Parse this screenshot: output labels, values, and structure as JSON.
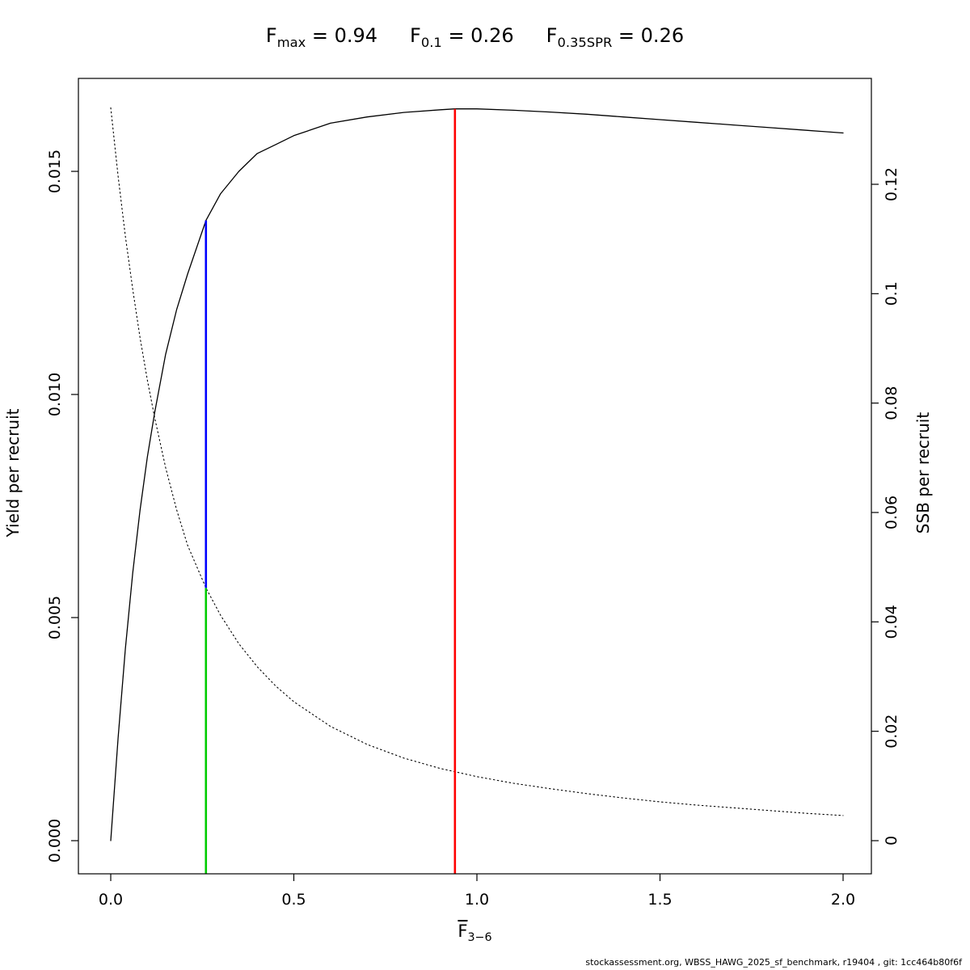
{
  "title": {
    "terms": [
      {
        "base": "F",
        "sub": "max",
        "eq": " = 0.94"
      },
      {
        "base": "F",
        "sub": "0.1",
        "eq": " = 0.26"
      },
      {
        "base": "F",
        "sub": "0.35SPR",
        "eq": " = 0.26"
      }
    ]
  },
  "axis_labels": {
    "y_left": "Yield per recruit",
    "y_right": "SSB per recruit",
    "x_base": "F",
    "x_sub": "3−6"
  },
  "footer": "stockassessment.org, WBSS_HAWG_2025_sf_benchmark, r19404 , git: 1cc464b80f6f",
  "chart_data": {
    "type": "line",
    "title": "Fmax = 0.94   F0.1 = 0.26   F0.35SPR = 0.26",
    "xlabel": "F̄3−6",
    "ylabel_left": "Yield per recruit",
    "ylabel_right": "SSB per recruit",
    "x_range": [
      0,
      2
    ],
    "grid": false,
    "legend": "none",
    "axes": {
      "x": {
        "tick_values": [
          0,
          0.5,
          1,
          1.5,
          2
        ],
        "tick_labels": [
          "0.0",
          "0.5",
          "1.0",
          "1.5",
          "2.0"
        ]
      },
      "y_left": {
        "tick_values": [
          0,
          0.005,
          0.01,
          0.015
        ],
        "tick_labels": [
          "0.000",
          "0.005",
          "0.010",
          "0.015"
        ]
      },
      "y_right": {
        "tick_values": [
          0,
          0.02,
          0.04,
          0.06,
          0.08,
          0.1,
          0.12
        ],
        "tick_labels": [
          "0",
          "0.02",
          "0.04",
          "0.06",
          "0.08",
          "0.1",
          "0.12"
        ]
      }
    },
    "series": [
      {
        "name": "yield-per-recruit",
        "axis": "left",
        "style": "solid",
        "color": "#000000",
        "x": [
          0,
          0.02,
          0.04,
          0.06,
          0.08,
          0.1,
          0.12,
          0.15,
          0.18,
          0.21,
          0.26,
          0.3,
          0.35,
          0.4,
          0.45,
          0.5,
          0.6,
          0.7,
          0.8,
          0.9,
          0.94,
          1.0,
          1.1,
          1.2,
          1.3,
          1.4,
          1.5,
          1.6,
          1.7,
          1.8,
          1.9,
          2.0
        ],
        "y": [
          0,
          0.0023,
          0.0043,
          0.006,
          0.0074,
          0.0086,
          0.0096,
          0.0109,
          0.0119,
          0.0127,
          0.0139,
          0.0145,
          0.015,
          0.0154,
          0.0156,
          0.0158,
          0.01608,
          0.01622,
          0.01632,
          0.01638,
          0.0164,
          0.0164,
          0.01637,
          0.01633,
          0.01628,
          0.01622,
          0.01616,
          0.0161,
          0.01604,
          0.01598,
          0.01592,
          0.01586
        ]
      },
      {
        "name": "ssb-per-recruit",
        "axis": "right",
        "style": "dotted",
        "color": "#000000",
        "x": [
          0,
          0.02,
          0.04,
          0.06,
          0.08,
          0.1,
          0.12,
          0.15,
          0.18,
          0.21,
          0.26,
          0.3,
          0.35,
          0.4,
          0.45,
          0.5,
          0.6,
          0.7,
          0.8,
          0.9,
          0.94,
          1.0,
          1.1,
          1.2,
          1.3,
          1.4,
          1.5,
          1.6,
          1.7,
          1.8,
          1.9,
          2.0
        ],
        "y": [
          0.134,
          0.1215,
          0.1105,
          0.1008,
          0.092,
          0.0842,
          0.0773,
          0.0682,
          0.0605,
          0.054,
          0.0462,
          0.0412,
          0.036,
          0.0318,
          0.0283,
          0.0254,
          0.0209,
          0.0176,
          0.0151,
          0.0132,
          0.0126,
          0.0117,
          0.0105,
          0.0095,
          0.0086,
          0.0078,
          0.0071,
          0.0065,
          0.006,
          0.0055,
          0.005,
          0.0046
        ]
      }
    ],
    "ref_lines": [
      {
        "name": "fmax",
        "label": "Fmax = 0.94",
        "x": 0.94,
        "color": "#FF0000",
        "from_axis": "bottom",
        "to_axis": "left",
        "to_value": 0.0164
      },
      {
        "name": "f01",
        "label": "F0.1 = 0.26",
        "x": 0.26,
        "color": "#0000FF",
        "from_axis": "right",
        "from_value": 0.0462,
        "to_axis": "left",
        "to_value": 0.0139
      },
      {
        "name": "f035spr",
        "label": "F0.35SPR = 0.26",
        "x": 0.26,
        "color": "#00CC00",
        "from_axis": "bottom",
        "to_axis": "right",
        "to_value": 0.0462
      }
    ],
    "reference_points": {
      "Fmax": 0.94,
      "F0.1": 0.26,
      "F0.35SPR": 0.26
    }
  }
}
